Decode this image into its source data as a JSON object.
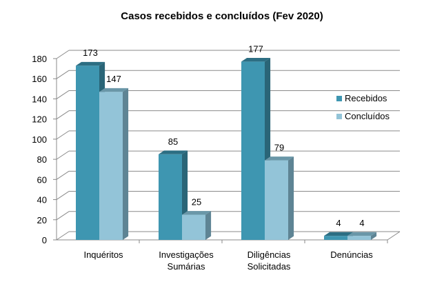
{
  "chart_data": {
    "type": "bar",
    "title": "Casos recebidos e concluídos (Fev 2020)",
    "categories": [
      [
        "Inquéritos"
      ],
      [
        "Investigações",
        "Sumárias"
      ],
      [
        "Diligências",
        "Solicitadas"
      ],
      [
        "Denúncias"
      ]
    ],
    "series": [
      {
        "name": "Recebidos",
        "values": [
          173,
          85,
          177,
          4
        ],
        "color": "#3E96B1",
        "top_color": "#2C6E83",
        "side_color": "#2A6577"
      },
      {
        "name": "Concluídos",
        "values": [
          147,
          25,
          79,
          4
        ],
        "color": "#93C4D8",
        "top_color": "#6A97A8",
        "side_color": "#5E8494"
      }
    ],
    "ylim": [
      0,
      180
    ],
    "yticks": [
      0,
      20,
      40,
      60,
      80,
      100,
      120,
      140,
      160,
      180
    ],
    "grid": true,
    "legend_position": "right",
    "xlabel": "",
    "ylabel": "",
    "axis_color": "#888888"
  }
}
